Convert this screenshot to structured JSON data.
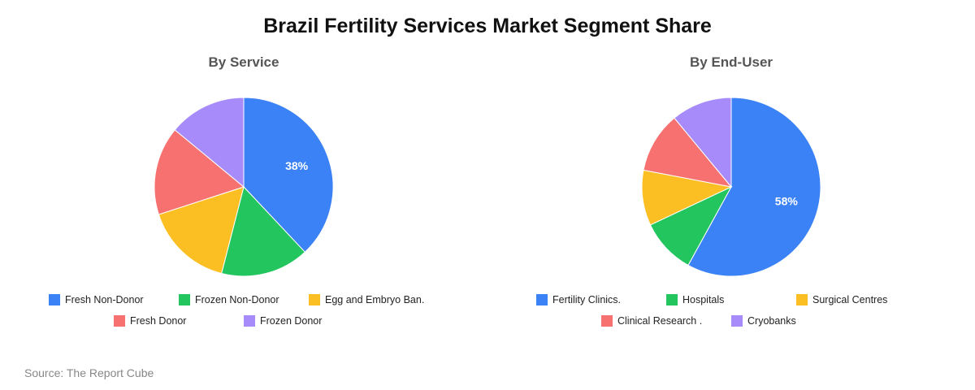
{
  "title": "Brazil Fertility Services Market Segment Share",
  "source": "Source: The Report Cube",
  "chart_data": [
    {
      "type": "pie",
      "title": "By Service",
      "categories": [
        "Fresh Non-Donor",
        "Frozen Non-Donor",
        "Egg and Embryo Ban.",
        "Fresh Donor",
        "Frozen Donor"
      ],
      "values": [
        38,
        16,
        16,
        16,
        14
      ],
      "data_labels": [
        "38%",
        "",
        "",
        "",
        ""
      ],
      "colors": [
        "#3b82f6",
        "#22c55e",
        "#fbbf24",
        "#f87171",
        "#a78bfa"
      ],
      "legend_position": "bottom"
    },
    {
      "type": "pie",
      "title": "By End-User",
      "categories": [
        "Fertility Clinics.",
        "Hospitals",
        "Surgical Centres",
        "Clinical Research .",
        "Cryobanks"
      ],
      "values": [
        58,
        10,
        10,
        11,
        11
      ],
      "data_labels": [
        "58%",
        "",
        "",
        "",
        ""
      ],
      "colors": [
        "#3b82f6",
        "#22c55e",
        "#fbbf24",
        "#f87171",
        "#a78bfa"
      ],
      "legend_position": "bottom"
    }
  ]
}
